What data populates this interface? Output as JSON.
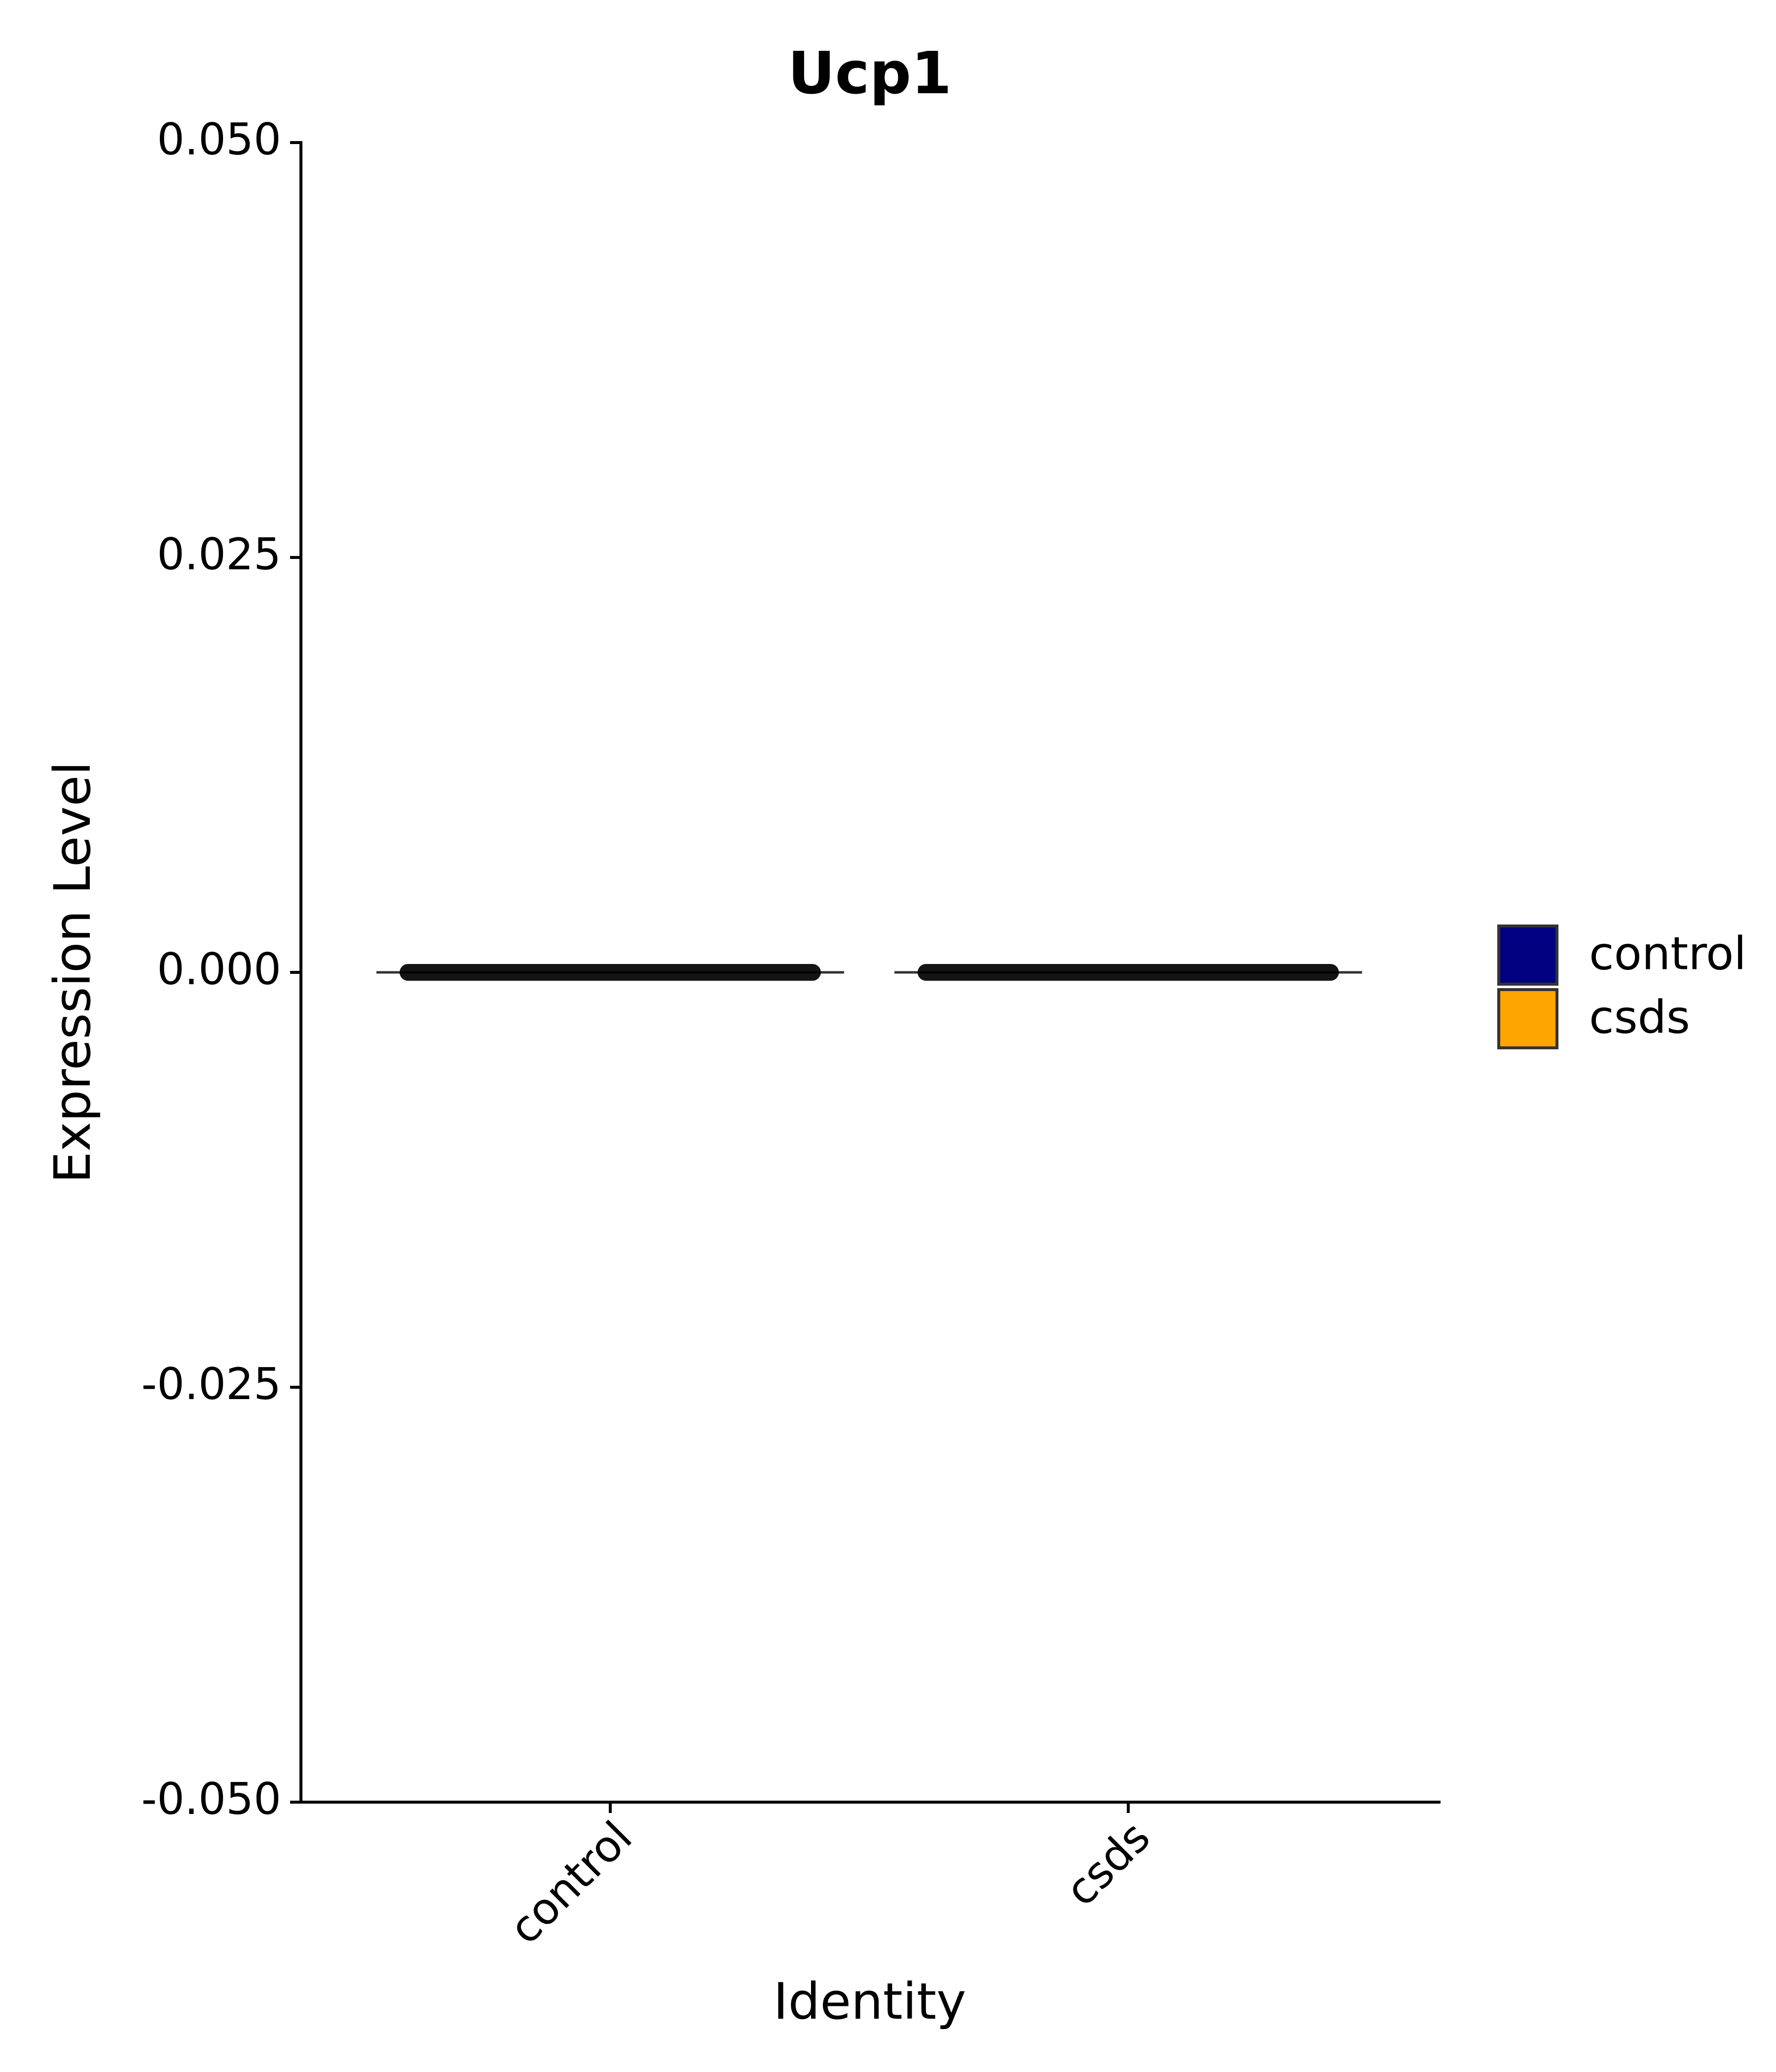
{
  "chart_data": {
    "type": "violin",
    "title": "Ucp1",
    "x_label": "Identity",
    "y_label": "Expression Level",
    "categories": [
      "control",
      "csds"
    ],
    "series": [
      {
        "name": "control",
        "color": "#000080",
        "values": [
          0,
          null
        ]
      },
      {
        "name": "csds",
        "color": "#FFA500",
        "values": [
          null,
          0
        ]
      }
    ],
    "ylim": [
      -0.05,
      0.05
    ],
    "yticks": [
      {
        "value": -0.05,
        "label": "-0.050"
      },
      {
        "value": -0.025,
        "label": "-0.025"
      },
      {
        "value": 0,
        "label": "0.000"
      },
      {
        "value": 0.025,
        "label": "0.025"
      },
      {
        "value": 0.05,
        "label": "0.050"
      }
    ],
    "legend_position": "right",
    "grid": false
  }
}
